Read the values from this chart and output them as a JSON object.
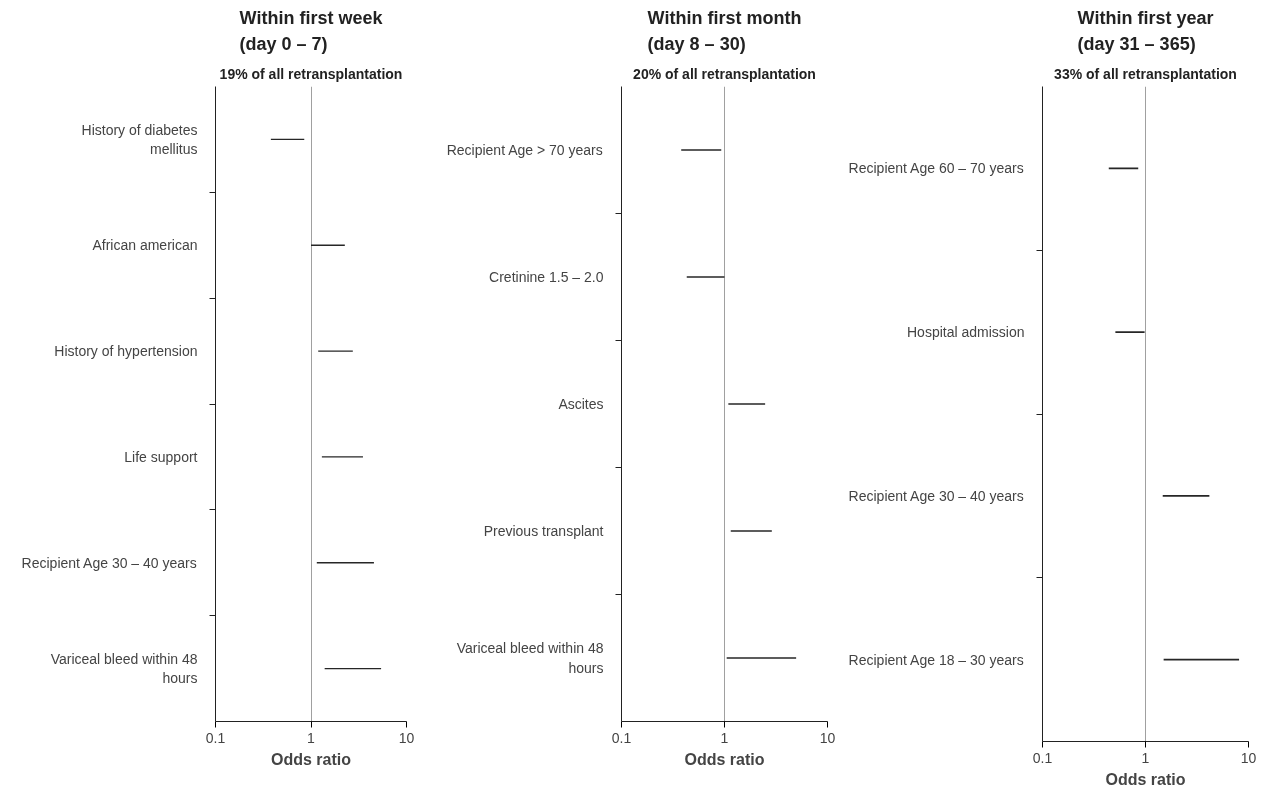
{
  "chart_data": [
    {
      "type": "bar",
      "orientation": "horizontal",
      "title": "Within first week (day 0 – 7)",
      "subtitle": "19% of all retransplantation",
      "xlabel": "Odds ratio",
      "categories": [
        "History of diabetes mellitus",
        "African american",
        "History of hypertension",
        "Life support",
        "Recipient Age 30 – 40 years",
        "Variceal bleed within 48 hours"
      ],
      "base": [
        0.38,
        1.0,
        1.19,
        1.3,
        1.15,
        1.39
      ],
      "values": [
        0.47,
        1.26,
        1.55,
        2.2,
        3.41,
        4.03
      ],
      "color": "#262626",
      "log": "x",
      "xlim": [
        0.1,
        10
      ],
      "xticks": [
        0.1,
        1,
        10
      ],
      "grid": "x"
    },
    {
      "type": "bar",
      "orientation": "horizontal",
      "title": "Within first month (day 8 – 30)",
      "subtitle": "20% of all retransplantation",
      "xlabel": "Odds ratio",
      "categories": [
        "Recipient Age > 70 years",
        "Cretinine 1.5 – 2.0",
        "Ascites",
        "Previous transplant",
        "Variceal bleed within 48 hours"
      ],
      "base": [
        0.38,
        0.43,
        1.09,
        1.15,
        1.05
      ],
      "values": [
        0.55,
        0.57,
        1.39,
        1.73,
        3.91
      ],
      "color": "#262626",
      "log": "x",
      "xlim": [
        0.1,
        10
      ],
      "xticks": [
        0.1,
        1,
        10
      ],
      "grid": "x"
    },
    {
      "type": "bar",
      "orientation": "horizontal",
      "title": "Within first year (day 31 – 365)",
      "subtitle": "33% of all retransplantation",
      "xlabel": "Odds ratio",
      "categories": [
        "Recipient Age 60 – 70 years",
        "Hospital admission",
        "Recipient Age 30 – 40 years",
        "Recipient Age 18 – 30 years"
      ],
      "base": [
        0.44,
        0.51,
        1.47,
        1.5
      ],
      "values": [
        0.41,
        0.47,
        2.7,
        6.6
      ],
      "color": "#262626",
      "log": "x",
      "xlim": [
        0.1,
        10
      ],
      "xticks": [
        0.1,
        1,
        10
      ],
      "grid": "x"
    }
  ]
}
